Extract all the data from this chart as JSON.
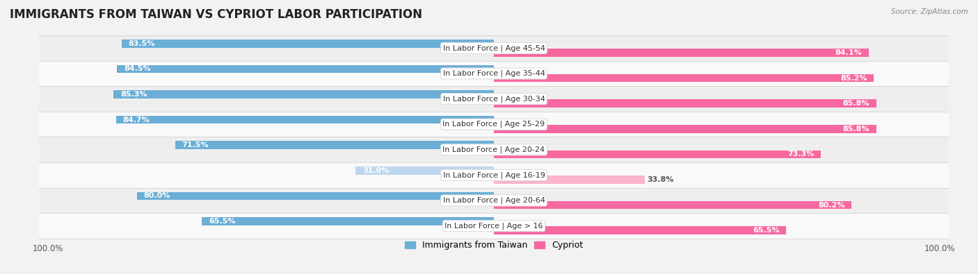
{
  "title": "IMMIGRANTS FROM TAIWAN VS CYPRIOT LABOR PARTICIPATION",
  "source": "Source: ZipAtlas.com",
  "categories": [
    "In Labor Force | Age > 16",
    "In Labor Force | Age 20-64",
    "In Labor Force | Age 16-19",
    "In Labor Force | Age 20-24",
    "In Labor Force | Age 25-29",
    "In Labor Force | Age 30-34",
    "In Labor Force | Age 35-44",
    "In Labor Force | Age 45-54"
  ],
  "taiwan_values": [
    65.5,
    80.0,
    31.0,
    71.5,
    84.7,
    85.3,
    84.5,
    83.5
  ],
  "cypriot_values": [
    65.5,
    80.2,
    33.8,
    73.3,
    85.8,
    85.8,
    85.2,
    84.1
  ],
  "taiwan_color": "#6baed6",
  "cypriot_color": "#f768a1",
  "taiwan_light_color": "#bdd7ee",
  "cypriot_light_color": "#fbb4ca",
  "background_color": "#f2f2f2",
  "row_bg_colors": [
    "#f9f9f9",
    "#eeeeee"
  ],
  "max_value": 100.0,
  "title_fontsize": 12,
  "label_fontsize": 8,
  "value_fontsize": 8,
  "tick_fontsize": 8.5,
  "legend_fontsize": 9
}
